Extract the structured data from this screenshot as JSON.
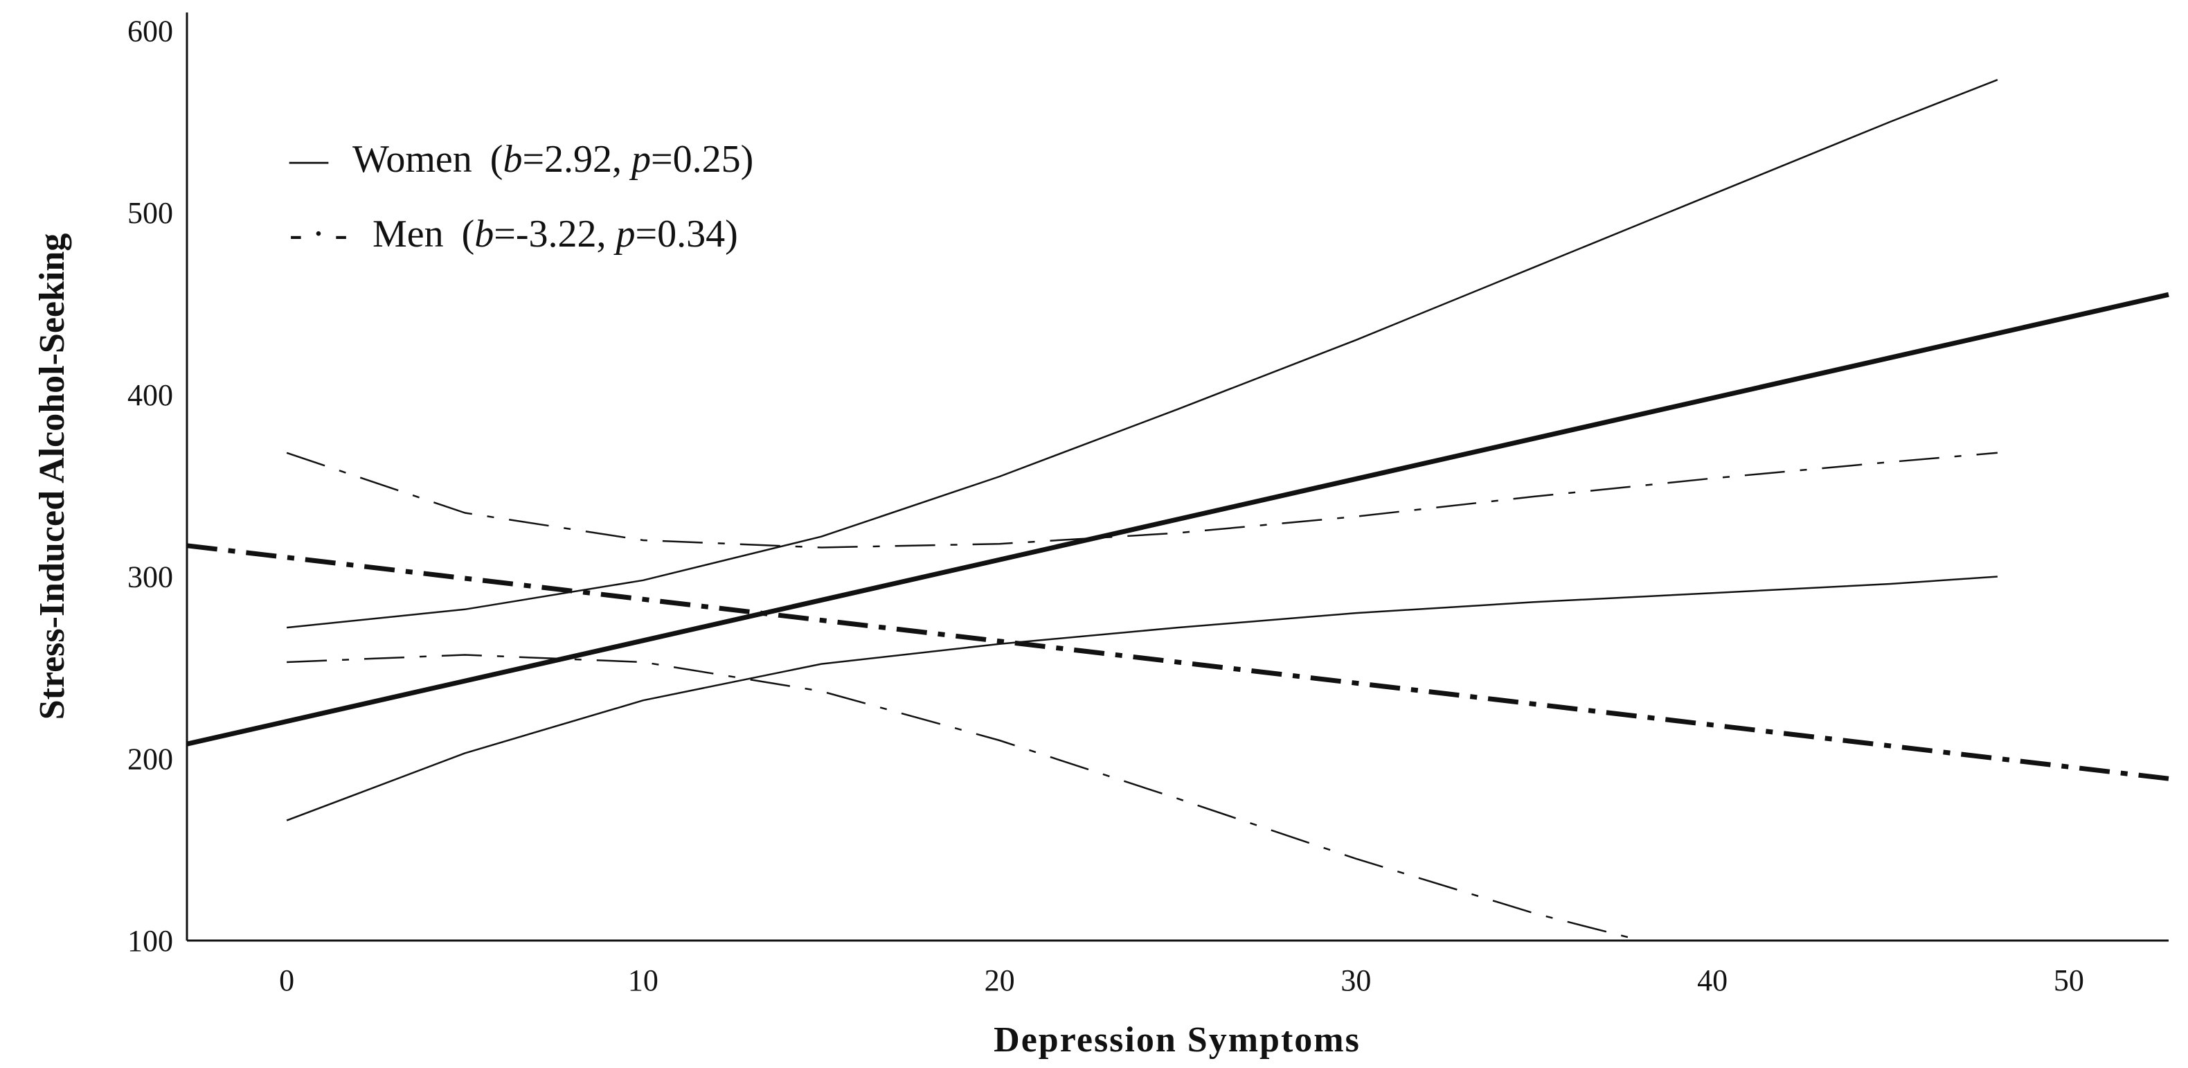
{
  "chart_data": {
    "type": "line",
    "xlabel": "Depression Symptoms",
    "ylabel": "Stress-Induced Alcohol-Seeking",
    "xlim": [
      -2.8,
      52.8
    ],
    "ylim": [
      100,
      610
    ],
    "xticks": [
      0,
      10,
      20,
      30,
      40,
      50
    ],
    "yticks": [
      100,
      200,
      300,
      400,
      500,
      600
    ],
    "legend": {
      "position": "top-left",
      "entries": [
        {
          "symbol": "—",
          "name": "Women",
          "b_var": "b",
          "b_val": "=2.92, ",
          "p_var": "p",
          "p_val": "=0.25)"
        },
        {
          "symbol": "- · -",
          "name": "Men",
          "b_var": "b",
          "b_val": "=-3.22, ",
          "p_var": "p",
          "p_val": "=0.34)"
        }
      ]
    },
    "series": [
      {
        "name": "Women",
        "role": "fit",
        "style": "solid-thick",
        "x": [
          -2.8,
          52.8
        ],
        "y": [
          208,
          455
        ]
      },
      {
        "name": "Women",
        "role": "ci-upper",
        "style": "solid-thin",
        "x": [
          0,
          5,
          10,
          15,
          20,
          25,
          30,
          35,
          40,
          45,
          48
        ],
        "y": [
          272,
          282,
          298,
          322,
          355,
          392,
          430,
          470,
          510,
          550,
          573
        ]
      },
      {
        "name": "Women",
        "role": "ci-lower",
        "style": "solid-thin",
        "x": [
          0,
          5,
          10,
          15,
          20,
          25,
          30,
          35,
          40,
          45,
          48
        ],
        "y": [
          166,
          203,
          232,
          252,
          263,
          272,
          280,
          286,
          291,
          296,
          300
        ]
      },
      {
        "name": "Men",
        "role": "fit",
        "style": "dashdot-thick",
        "x": [
          -2.8,
          52.8
        ],
        "y": [
          317,
          189
        ]
      },
      {
        "name": "Men",
        "role": "ci-upper",
        "style": "dashdot-thin",
        "x": [
          0,
          5,
          10,
          15,
          20,
          25,
          30,
          35,
          40,
          45,
          48
        ],
        "y": [
          368,
          335,
          320,
          316,
          318,
          324,
          333,
          344,
          354,
          363,
          368
        ]
      },
      {
        "name": "Men",
        "role": "ci-lower",
        "style": "dashdot-thin",
        "x": [
          0,
          5,
          10,
          15,
          20,
          25,
          30,
          35,
          38
        ],
        "y": [
          253,
          257,
          253,
          237,
          210,
          178,
          145,
          115,
          100
        ]
      }
    ]
  }
}
